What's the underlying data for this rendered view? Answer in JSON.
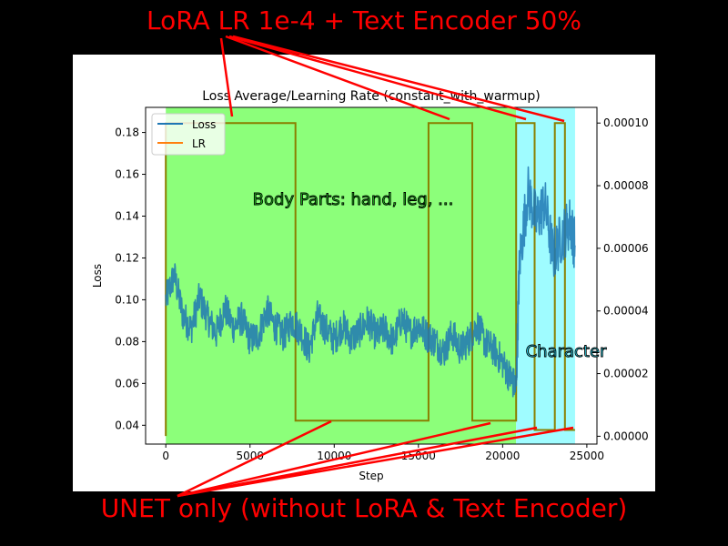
{
  "annotations": {
    "top": "LoRA LR 1e-4 + Text Encoder 50%",
    "bottom": "UNET only (without LoRA & Text Encoder)",
    "region_body": "Body Parts: hand, leg, ...",
    "region_character": "Character"
  },
  "colors": {
    "loss": "#1f77b4",
    "lr": "#ff7f0e",
    "region_body": "#8cff7a",
    "region_character": "#9ffcff",
    "annotation": "#ff0000"
  },
  "chart_data": {
    "type": "line",
    "title": "Loss Average/Learning Rate (constant_with_warmup)",
    "xlabel": "Step",
    "ylabel": "Loss",
    "xlim": [
      -1200,
      25600
    ],
    "ylim": [
      0.031,
      0.192
    ],
    "y2lim": [
      -2.5e-06,
      0.000105
    ],
    "xticks": [
      0,
      5000,
      10000,
      15000,
      20000,
      25000
    ],
    "yticks": [
      0.04,
      0.06,
      0.08,
      0.1,
      0.12,
      0.14,
      0.16,
      0.18
    ],
    "xtick_labels": [
      "0",
      "5000",
      "10000",
      "15000",
      "20000",
      "25000"
    ],
    "ytick_labels": [
      "0.04",
      "0.06",
      "0.08",
      "0.10",
      "0.12",
      "0.14",
      "0.16",
      "0.18"
    ],
    "y2ticks": [
      0.0,
      2e-05,
      4e-05,
      6e-05,
      8e-05,
      0.0001
    ],
    "y2tick_labels": [
      "0.00000",
      "0.00002",
      "0.00004",
      "0.00006",
      "0.00008",
      "0.00010"
    ],
    "grid": false,
    "legend": {
      "position": "top-left",
      "entries": [
        "Loss",
        "LR"
      ]
    },
    "regions": [
      {
        "x_start": 0,
        "x_end": 20800,
        "label": "Body Parts: hand, leg, ..."
      },
      {
        "x_start": 20800,
        "x_end": 24300,
        "label": "Character"
      }
    ],
    "series": [
      {
        "name": "LR",
        "axis": "right",
        "x": [
          0,
          0,
          7700,
          7700,
          15600,
          15600,
          18200,
          18200,
          20800,
          20800,
          21900,
          21900,
          23100,
          23100,
          23700,
          23700,
          24300
        ],
        "values": [
          1e-07,
          0.0001,
          0.0001,
          5e-06,
          5e-06,
          0.0001,
          0.0001,
          5e-06,
          5e-06,
          0.0001,
          0.0001,
          2e-06,
          2e-06,
          0.0001,
          0.0001,
          2e-06,
          2e-06
        ]
      },
      {
        "name": "Loss",
        "axis": "left",
        "x": [
          0,
          500,
          1000,
          1500,
          2000,
          2500,
          3000,
          3500,
          4000,
          4500,
          5000,
          5500,
          6000,
          6500,
          7000,
          7500,
          8000,
          8500,
          9000,
          9500,
          10000,
          10500,
          11000,
          11500,
          12000,
          12500,
          13000,
          13500,
          14000,
          14500,
          15000,
          15500,
          16000,
          16500,
          17000,
          17500,
          18000,
          18500,
          19000,
          19500,
          20000,
          20500,
          20800,
          21000,
          21500,
          22000,
          22500,
          23000,
          23500,
          24000,
          24300
        ],
        "values": [
          0.1,
          0.112,
          0.093,
          0.086,
          0.101,
          0.091,
          0.084,
          0.096,
          0.087,
          0.091,
          0.081,
          0.083,
          0.095,
          0.087,
          0.083,
          0.09,
          0.085,
          0.076,
          0.092,
          0.086,
          0.081,
          0.088,
          0.081,
          0.085,
          0.09,
          0.083,
          0.086,
          0.08,
          0.091,
          0.084,
          0.088,
          0.083,
          0.08,
          0.075,
          0.084,
          0.076,
          0.081,
          0.088,
          0.079,
          0.076,
          0.07,
          0.062,
          0.058,
          0.118,
          0.152,
          0.138,
          0.146,
          0.121,
          0.13,
          0.137,
          0.126
        ]
      }
    ]
  }
}
